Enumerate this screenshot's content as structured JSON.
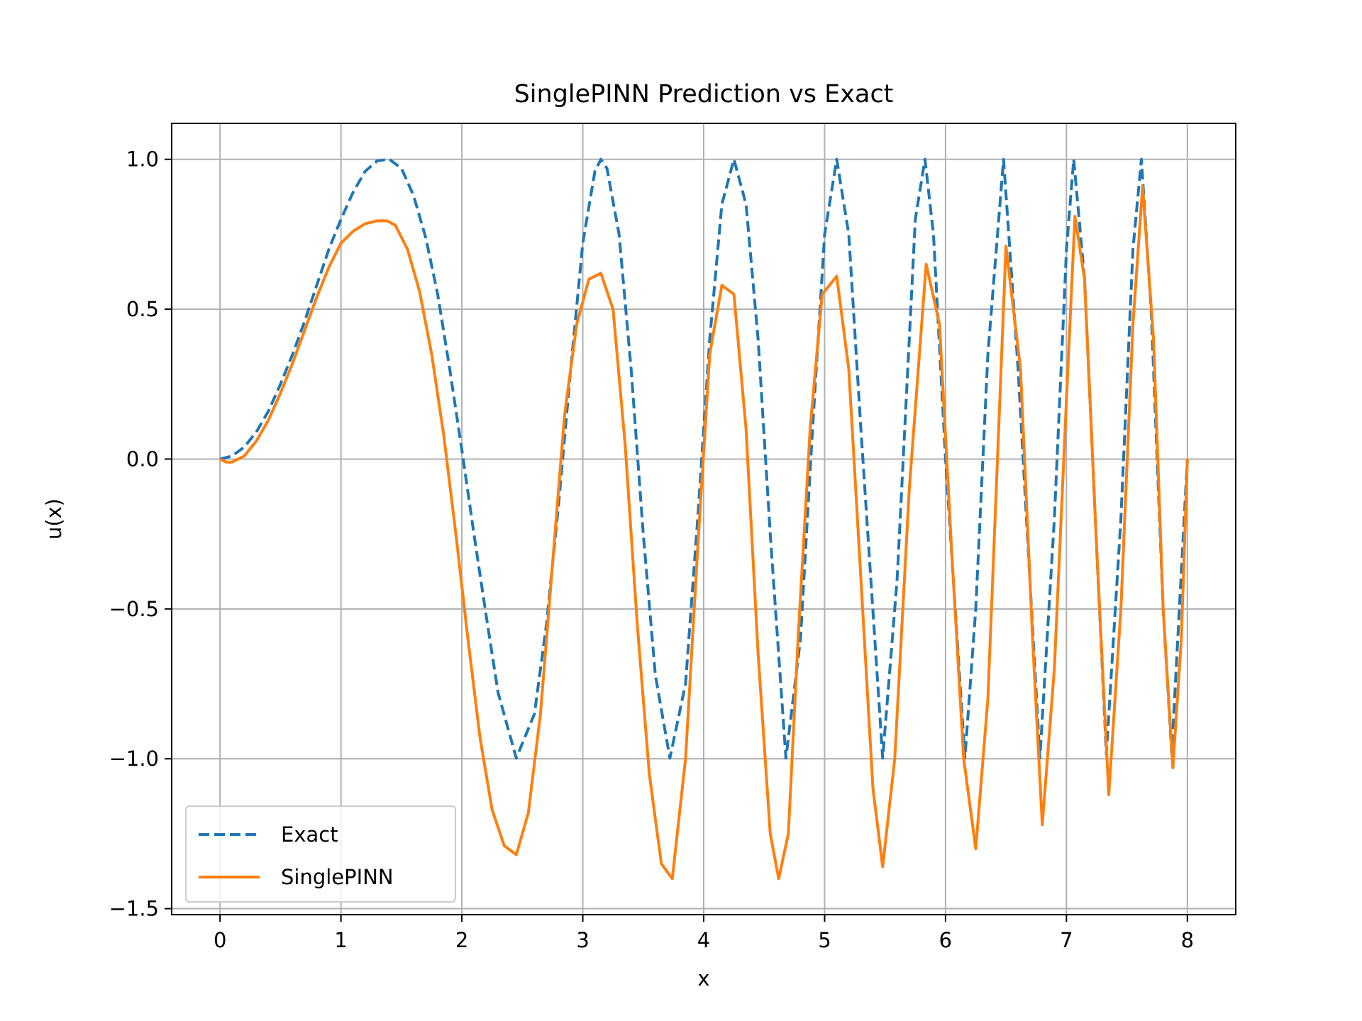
{
  "chart_data": {
    "type": "line",
    "title": "SinglePINN Prediction vs Exact",
    "xlabel": "x",
    "ylabel": "u(x)",
    "xlim": [
      -0.4,
      8.4
    ],
    "ylim": [
      -1.52,
      1.12
    ],
    "xticks": [
      0,
      1,
      2,
      3,
      4,
      5,
      6,
      7,
      8
    ],
    "xtick_labels": [
      "0",
      "1",
      "2",
      "3",
      "4",
      "5",
      "6",
      "7",
      "8"
    ],
    "yticks": [
      1.0,
      0.5,
      0.0,
      -0.5,
      -1.0,
      -1.5
    ],
    "ytick_labels": [
      "1.0",
      "0.5",
      "0.0",
      "−0.5",
      "−1.0",
      "−1.5"
    ],
    "grid": true,
    "legend_position": "lower-left",
    "series": [
      {
        "name": "Exact",
        "style": "dashed",
        "color": "#1f77b4",
        "x": [
          0,
          0.1,
          0.2,
          0.3,
          0.4,
          0.5,
          0.6,
          0.7,
          0.8,
          0.9,
          1.0,
          1.1,
          1.2,
          1.3,
          1.4,
          1.5,
          1.6,
          1.7,
          1.8,
          1.9,
          2.0,
          2.1,
          2.2,
          2.3,
          2.45,
          2.6,
          2.7,
          2.8,
          2.9,
          3.0,
          3.1,
          3.15,
          3.2,
          3.3,
          3.4,
          3.5,
          3.6,
          3.72,
          3.85,
          3.95,
          4.05,
          4.15,
          4.25,
          4.35,
          4.45,
          4.55,
          4.68,
          4.8,
          4.9,
          5.0,
          5.1,
          5.2,
          5.3,
          5.48,
          5.6,
          5.7,
          5.75,
          5.83,
          5.9,
          6.0,
          6.16,
          6.25,
          6.35,
          6.48,
          6.6,
          6.78,
          6.9,
          7.0,
          7.06,
          7.15,
          7.25,
          7.33,
          7.45,
          7.55,
          7.62,
          7.7,
          7.8,
          7.87,
          8.0
        ],
        "y": [
          0,
          0.01,
          0.04,
          0.09,
          0.16,
          0.25,
          0.35,
          0.46,
          0.58,
          0.7,
          0.8,
          0.89,
          0.96,
          0.995,
          1.0,
          0.97,
          0.88,
          0.74,
          0.55,
          0.3,
          0.03,
          -0.25,
          -0.52,
          -0.78,
          -0.998,
          -0.85,
          -0.55,
          -0.15,
          0.3,
          0.72,
          0.96,
          1.0,
          0.97,
          0.75,
          0.3,
          -0.25,
          -0.72,
          -0.998,
          -0.75,
          -0.2,
          0.4,
          0.85,
          1.0,
          0.85,
          0.4,
          -0.25,
          -0.998,
          -0.6,
          0.1,
          0.75,
          1.0,
          0.75,
          0.1,
          -0.998,
          -0.4,
          0.4,
          0.8,
          1.0,
          0.75,
          0.0,
          -0.998,
          -0.5,
          0.35,
          1.0,
          0.3,
          -0.998,
          -0.2,
          0.7,
          1.0,
          0.6,
          -0.3,
          -0.985,
          -0.2,
          0.7,
          1.0,
          0.5,
          -0.5,
          -0.98,
          0.0
        ]
      },
      {
        "name": "SinglePINN",
        "style": "solid",
        "color": "#ff7f0e",
        "x": [
          0,
          0.05,
          0.1,
          0.2,
          0.3,
          0.4,
          0.5,
          0.6,
          0.7,
          0.8,
          0.9,
          1.0,
          1.1,
          1.2,
          1.3,
          1.38,
          1.45,
          1.55,
          1.65,
          1.75,
          1.85,
          1.95,
          2.05,
          2.15,
          2.25,
          2.35,
          2.45,
          2.55,
          2.65,
          2.75,
          2.85,
          2.95,
          3.05,
          3.15,
          3.25,
          3.35,
          3.45,
          3.55,
          3.65,
          3.74,
          3.85,
          3.95,
          4.05,
          4.15,
          4.25,
          4.35,
          4.45,
          4.55,
          4.62,
          4.7,
          4.78,
          4.88,
          4.98,
          5.1,
          5.2,
          5.3,
          5.4,
          5.48,
          5.58,
          5.7,
          5.84,
          5.95,
          6.05,
          6.15,
          6.25,
          6.35,
          6.5,
          6.62,
          6.72,
          6.8,
          6.9,
          7.0,
          7.07,
          7.15,
          7.25,
          7.35,
          7.45,
          7.55,
          7.63,
          7.72,
          7.8,
          7.88,
          7.95,
          8.0
        ],
        "y": [
          0,
          -0.01,
          -0.01,
          0.01,
          0.06,
          0.13,
          0.22,
          0.32,
          0.43,
          0.54,
          0.64,
          0.72,
          0.76,
          0.785,
          0.795,
          0.795,
          0.78,
          0.7,
          0.56,
          0.35,
          0.08,
          -0.25,
          -0.6,
          -0.93,
          -1.17,
          -1.29,
          -1.32,
          -1.18,
          -0.85,
          -0.35,
          0.15,
          0.45,
          0.6,
          0.62,
          0.5,
          0.05,
          -0.55,
          -1.05,
          -1.35,
          -1.4,
          -1.0,
          -0.3,
          0.35,
          0.58,
          0.55,
          0.1,
          -0.65,
          -1.25,
          -1.4,
          -1.25,
          -0.6,
          0.1,
          0.55,
          0.61,
          0.3,
          -0.4,
          -1.1,
          -1.36,
          -1.0,
          -0.1,
          0.65,
          0.45,
          -0.3,
          -1.0,
          -1.3,
          -0.8,
          0.71,
          0.3,
          -0.6,
          -1.22,
          -0.7,
          0.2,
          0.81,
          0.6,
          -0.3,
          -1.12,
          -0.5,
          0.45,
          0.91,
          0.4,
          -0.5,
          -1.03,
          -0.6,
          0.0
        ]
      }
    ]
  }
}
